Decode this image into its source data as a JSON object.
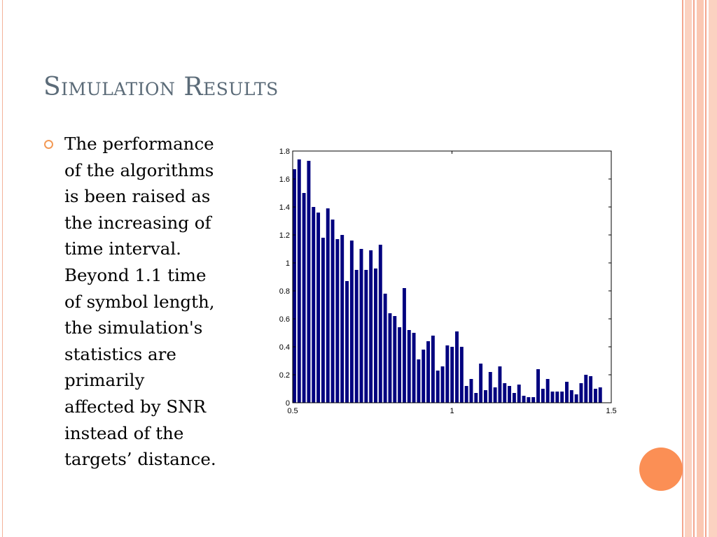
{
  "slide": {
    "title": "Simulation Results",
    "body_lines": [
      "The performance",
      "of the algorithms",
      "is been raised as",
      "the increasing of",
      "time interval.",
      "Beyond 1.1 time",
      "of symbol length,",
      "the simulation's",
      "statistics are",
      "primarily",
      "affected by SNR",
      "instead of the",
      "targets’ distance."
    ],
    "colors": {
      "title": "#5b6b78",
      "accent": "#fb8f55",
      "bullet": "#f39a56",
      "bar": "#00007f"
    }
  },
  "chart_data": {
    "type": "bar",
    "title": "",
    "xlabel": "",
    "ylabel": "",
    "xlim": [
      0.5,
      1.5
    ],
    "ylim": [
      0,
      1.8
    ],
    "x_ticks": [
      "0.5",
      "1",
      "1.5"
    ],
    "y_ticks": [
      "0",
      "0.2",
      "0.4",
      "0.6",
      "0.8",
      "1",
      "1.2",
      "1.4",
      "1.6",
      "1.8"
    ],
    "bin_width": 0.015,
    "grid": false,
    "values": [
      1.67,
      1.74,
      1.5,
      1.73,
      1.4,
      1.36,
      1.18,
      1.39,
      1.31,
      1.17,
      1.2,
      0.87,
      1.16,
      0.95,
      1.1,
      0.95,
      1.09,
      0.96,
      1.13,
      0.78,
      0.64,
      0.62,
      0.54,
      0.82,
      0.52,
      0.5,
      0.31,
      0.38,
      0.44,
      0.48,
      0.23,
      0.26,
      0.41,
      0.4,
      0.51,
      0.4,
      0.12,
      0.17,
      0.07,
      0.28,
      0.09,
      0.22,
      0.11,
      0.26,
      0.14,
      0.12,
      0.07,
      0.13,
      0.05,
      0.04,
      0.04,
      0.24,
      0.1,
      0.17,
      0.08,
      0.08,
      0.08,
      0.15,
      0.09,
      0.06,
      0.14,
      0.2,
      0.19,
      0.1,
      0.11
    ]
  }
}
